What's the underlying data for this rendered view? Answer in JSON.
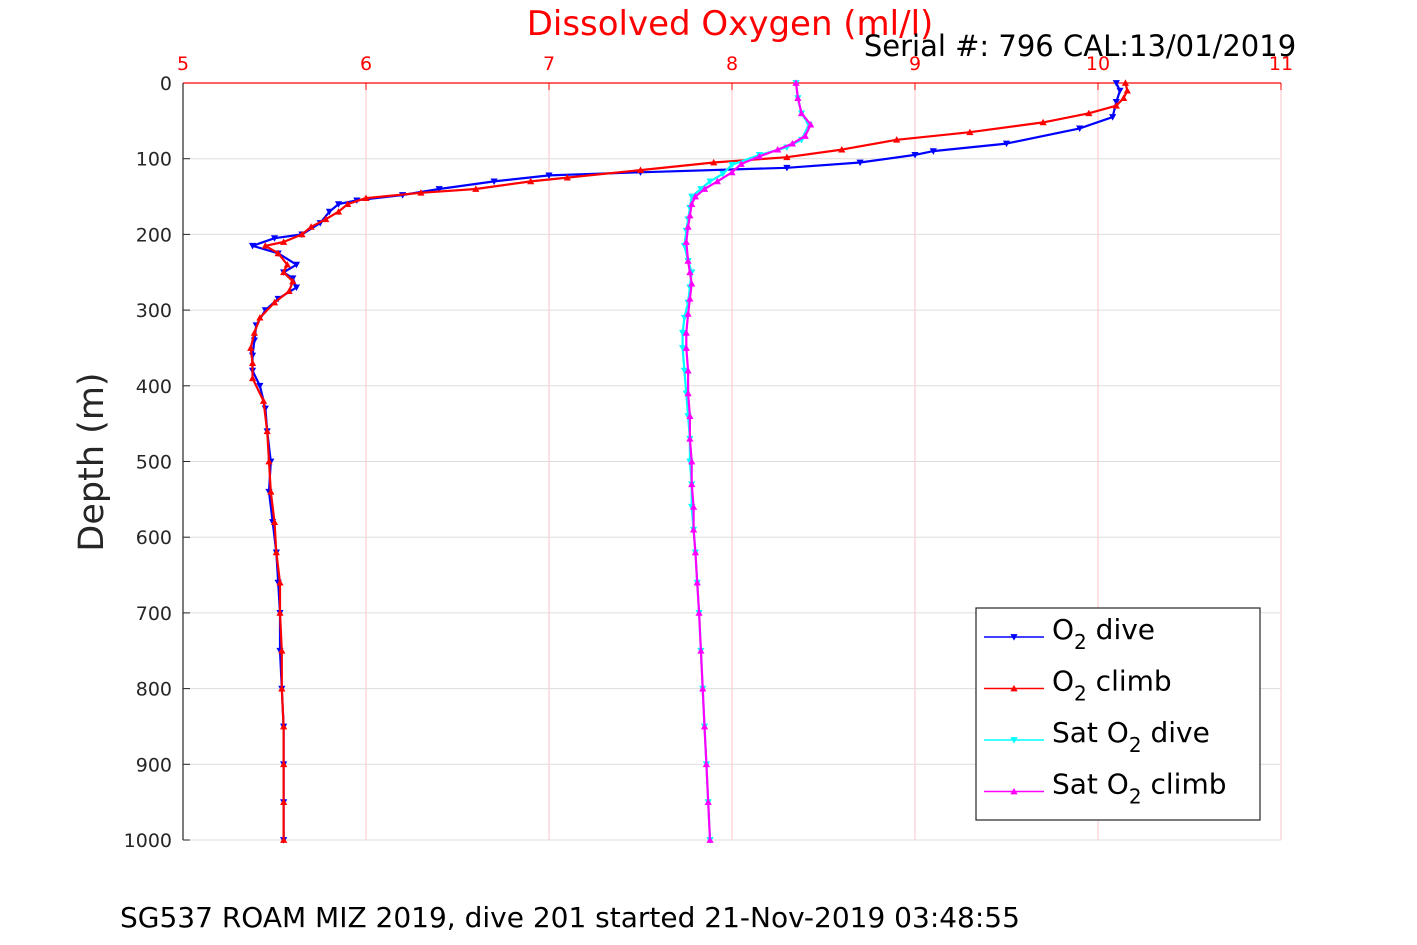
{
  "title": "Dissolved Oxygen (ml/l)",
  "serial_caption": "Serial #: 796  CAL:13/01/2019",
  "footer": "SG537 ROAM MIZ 2019, dive 201 started 21-Nov-2019 03:48:55",
  "colors": {
    "o2_dive": "#0000ff",
    "o2_climb": "#ff0000",
    "sat_dive": "#00ffff",
    "sat_climb": "#ff00ff",
    "x_axis": "#ff0000",
    "x_grid": "#ffc0cb",
    "y_grid": "#dddddd"
  },
  "chart_data": {
    "type": "line",
    "title": "Dissolved Oxygen (ml/l)",
    "xlabel": "",
    "ylabel": "Depth (m)",
    "xlim": [
      5,
      11
    ],
    "ylim": [
      0,
      1000
    ],
    "y_reversed": true,
    "x_axis_location": "top",
    "grid": true,
    "xticks": [
      "5",
      "6",
      "7",
      "8",
      "9",
      "10",
      "11"
    ],
    "yticks": [
      "0",
      "100",
      "200",
      "300",
      "400",
      "500",
      "600",
      "700",
      "800",
      "900",
      "1000"
    ],
    "legend_position": "bottom-right",
    "series": [
      {
        "name": "O2 dive",
        "legend_label": {
          "prefix": "O",
          "sub": "2",
          "suffix": " dive"
        },
        "color": "#0000ff",
        "marker": "triangle-down",
        "points": [
          [
            10.1,
            0
          ],
          [
            10.12,
            10
          ],
          [
            10.1,
            25
          ],
          [
            10.08,
            45
          ],
          [
            9.9,
            60
          ],
          [
            9.5,
            80
          ],
          [
            9.1,
            90
          ],
          [
            9.0,
            95
          ],
          [
            8.7,
            105
          ],
          [
            8.3,
            112
          ],
          [
            7.5,
            118
          ],
          [
            7.0,
            122
          ],
          [
            6.7,
            130
          ],
          [
            6.4,
            140
          ],
          [
            6.2,
            148
          ],
          [
            5.95,
            155
          ],
          [
            5.85,
            160
          ],
          [
            5.8,
            170
          ],
          [
            5.75,
            185
          ],
          [
            5.65,
            200
          ],
          [
            5.5,
            205
          ],
          [
            5.38,
            215
          ],
          [
            5.52,
            225
          ],
          [
            5.62,
            240
          ],
          [
            5.55,
            250
          ],
          [
            5.6,
            258
          ],
          [
            5.62,
            270
          ],
          [
            5.52,
            285
          ],
          [
            5.45,
            300
          ],
          [
            5.4,
            320
          ],
          [
            5.39,
            340
          ],
          [
            5.38,
            360
          ],
          [
            5.38,
            380
          ],
          [
            5.42,
            400
          ],
          [
            5.45,
            430
          ],
          [
            5.46,
            460
          ],
          [
            5.48,
            500
          ],
          [
            5.47,
            540
          ],
          [
            5.49,
            580
          ],
          [
            5.51,
            620
          ],
          [
            5.52,
            660
          ],
          [
            5.53,
            700
          ],
          [
            5.53,
            750
          ],
          [
            5.54,
            800
          ],
          [
            5.55,
            850
          ],
          [
            5.55,
            900
          ],
          [
            5.55,
            950
          ],
          [
            5.55,
            1000
          ]
        ]
      },
      {
        "name": "O2 climb",
        "legend_label": {
          "prefix": "O",
          "sub": "2",
          "suffix": " climb"
        },
        "color": "#ff0000",
        "marker": "triangle-up",
        "points": [
          [
            10.15,
            0
          ],
          [
            10.16,
            10
          ],
          [
            10.14,
            20
          ],
          [
            10.1,
            30
          ],
          [
            9.95,
            40
          ],
          [
            9.7,
            52
          ],
          [
            9.3,
            65
          ],
          [
            8.9,
            75
          ],
          [
            8.6,
            88
          ],
          [
            8.3,
            98
          ],
          [
            7.9,
            105
          ],
          [
            7.5,
            115
          ],
          [
            7.1,
            125
          ],
          [
            6.9,
            130
          ],
          [
            6.6,
            140
          ],
          [
            6.3,
            145
          ],
          [
            6.0,
            152
          ],
          [
            5.9,
            160
          ],
          [
            5.85,
            170
          ],
          [
            5.78,
            180
          ],
          [
            5.7,
            190
          ],
          [
            5.65,
            200
          ],
          [
            5.55,
            210
          ],
          [
            5.45,
            215
          ],
          [
            5.52,
            225
          ],
          [
            5.57,
            240
          ],
          [
            5.55,
            250
          ],
          [
            5.6,
            262
          ],
          [
            5.58,
            275
          ],
          [
            5.5,
            290
          ],
          [
            5.42,
            310
          ],
          [
            5.39,
            330
          ],
          [
            5.37,
            350
          ],
          [
            5.38,
            370
          ],
          [
            5.38,
            390
          ],
          [
            5.44,
            420
          ],
          [
            5.46,
            460
          ],
          [
            5.47,
            500
          ],
          [
            5.48,
            540
          ],
          [
            5.5,
            580
          ],
          [
            5.51,
            620
          ],
          [
            5.53,
            660
          ],
          [
            5.53,
            700
          ],
          [
            5.54,
            750
          ],
          [
            5.54,
            800
          ],
          [
            5.55,
            850
          ],
          [
            5.55,
            900
          ],
          [
            5.55,
            950
          ],
          [
            5.55,
            1000
          ]
        ]
      },
      {
        "name": "Sat O2 dive",
        "legend_label": {
          "prefix": "Sat O",
          "sub": "2",
          "suffix": " dive"
        },
        "color": "#00ffff",
        "marker": "triangle-down",
        "points": [
          [
            8.35,
            0
          ],
          [
            8.36,
            20
          ],
          [
            8.38,
            40
          ],
          [
            8.42,
            55
          ],
          [
            8.38,
            75
          ],
          [
            8.3,
            85
          ],
          [
            8.15,
            95
          ],
          [
            8.0,
            108
          ],
          [
            7.95,
            120
          ],
          [
            7.88,
            130
          ],
          [
            7.83,
            140
          ],
          [
            7.78,
            150
          ],
          [
            7.77,
            165
          ],
          [
            7.76,
            180
          ],
          [
            7.75,
            195
          ],
          [
            7.74,
            215
          ],
          [
            7.76,
            235
          ],
          [
            7.78,
            250
          ],
          [
            7.77,
            270
          ],
          [
            7.76,
            290
          ],
          [
            7.74,
            310
          ],
          [
            7.73,
            330
          ],
          [
            7.73,
            350
          ],
          [
            7.74,
            380
          ],
          [
            7.75,
            410
          ],
          [
            7.76,
            440
          ],
          [
            7.77,
            470
          ],
          [
            7.77,
            500
          ],
          [
            7.78,
            530
          ],
          [
            7.78,
            560
          ],
          [
            7.79,
            590
          ],
          [
            7.8,
            620
          ],
          [
            7.81,
            660
          ],
          [
            7.82,
            700
          ],
          [
            7.83,
            750
          ],
          [
            7.84,
            800
          ],
          [
            7.85,
            850
          ],
          [
            7.86,
            900
          ],
          [
            7.87,
            950
          ],
          [
            7.88,
            1000
          ]
        ]
      },
      {
        "name": "Sat O2 climb",
        "legend_label": {
          "prefix": "Sat O",
          "sub": "2",
          "suffix": " climb"
        },
        "color": "#ff00ff",
        "marker": "triangle-up",
        "points": [
          [
            8.35,
            0
          ],
          [
            8.36,
            20
          ],
          [
            8.38,
            40
          ],
          [
            8.43,
            55
          ],
          [
            8.4,
            70
          ],
          [
            8.33,
            80
          ],
          [
            8.25,
            88
          ],
          [
            8.15,
            97
          ],
          [
            8.05,
            107
          ],
          [
            8.0,
            118
          ],
          [
            7.92,
            130
          ],
          [
            7.85,
            140
          ],
          [
            7.8,
            150
          ],
          [
            7.78,
            160
          ],
          [
            7.77,
            175
          ],
          [
            7.76,
            190
          ],
          [
            7.75,
            210
          ],
          [
            7.76,
            235
          ],
          [
            7.77,
            250
          ],
          [
            7.78,
            265
          ],
          [
            7.77,
            285
          ],
          [
            7.76,
            305
          ],
          [
            7.75,
            330
          ],
          [
            7.75,
            350
          ],
          [
            7.76,
            380
          ],
          [
            7.76,
            410
          ],
          [
            7.77,
            440
          ],
          [
            7.77,
            470
          ],
          [
            7.78,
            500
          ],
          [
            7.78,
            530
          ],
          [
            7.79,
            560
          ],
          [
            7.79,
            590
          ],
          [
            7.8,
            620
          ],
          [
            7.81,
            660
          ],
          [
            7.82,
            700
          ],
          [
            7.83,
            750
          ],
          [
            7.84,
            800
          ],
          [
            7.85,
            850
          ],
          [
            7.86,
            900
          ],
          [
            7.87,
            950
          ],
          [
            7.88,
            1000
          ]
        ]
      }
    ]
  }
}
